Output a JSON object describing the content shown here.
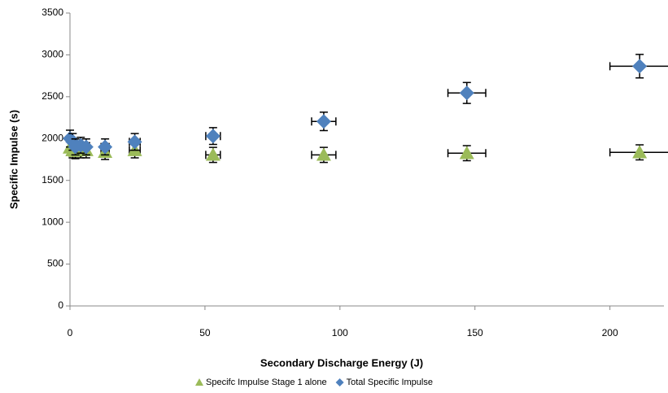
{
  "chart_data": {
    "type": "scatter",
    "xlabel": "Secondary Discharge Energy (J)",
    "ylabel": "Specific Impulse (s)",
    "xlim": [
      0,
      220
    ],
    "xticks": [
      0,
      50,
      100,
      150,
      200
    ],
    "ylim": [
      0,
      3500
    ],
    "yticks": [
      0,
      500,
      1000,
      1500,
      2000,
      2500,
      3000,
      3500
    ],
    "legend": "bottom",
    "series": [
      {
        "name": "Specifc Impulse Stage 1 alone",
        "color": "#9bbb59",
        "marker": "triangle",
        "x": [
          0,
          1,
          2,
          4,
          6,
          13,
          24,
          53,
          94,
          147,
          211
        ],
        "values": [
          1890,
          1860,
          1850,
          1860,
          1860,
          1840,
          1860,
          1805,
          1805,
          1825,
          1835
        ],
        "xerr": [
          0,
          0.2,
          0.3,
          0.5,
          1,
          1.5,
          2,
          2.7,
          4.5,
          7,
          11
        ],
        "yerr": [
          90,
          90,
          90,
          90,
          90,
          90,
          90,
          90,
          90,
          90,
          90
        ]
      },
      {
        "name": "Total Specific Impulse",
        "color": "#4f81bd",
        "marker": "diamond",
        "x": [
          0,
          1,
          2,
          4,
          6,
          13,
          24,
          53,
          94,
          147,
          211
        ],
        "values": [
          2000,
          1960,
          1900,
          1920,
          1900,
          1900,
          1960,
          2030,
          2205,
          2545,
          2865
        ],
        "xerr": [
          0,
          0.2,
          0.3,
          0.5,
          1,
          1.5,
          2,
          2.7,
          4.5,
          7,
          11
        ],
        "yerr": [
          100,
          100,
          95,
          95,
          95,
          95,
          100,
          100,
          110,
          125,
          140
        ]
      }
    ]
  }
}
